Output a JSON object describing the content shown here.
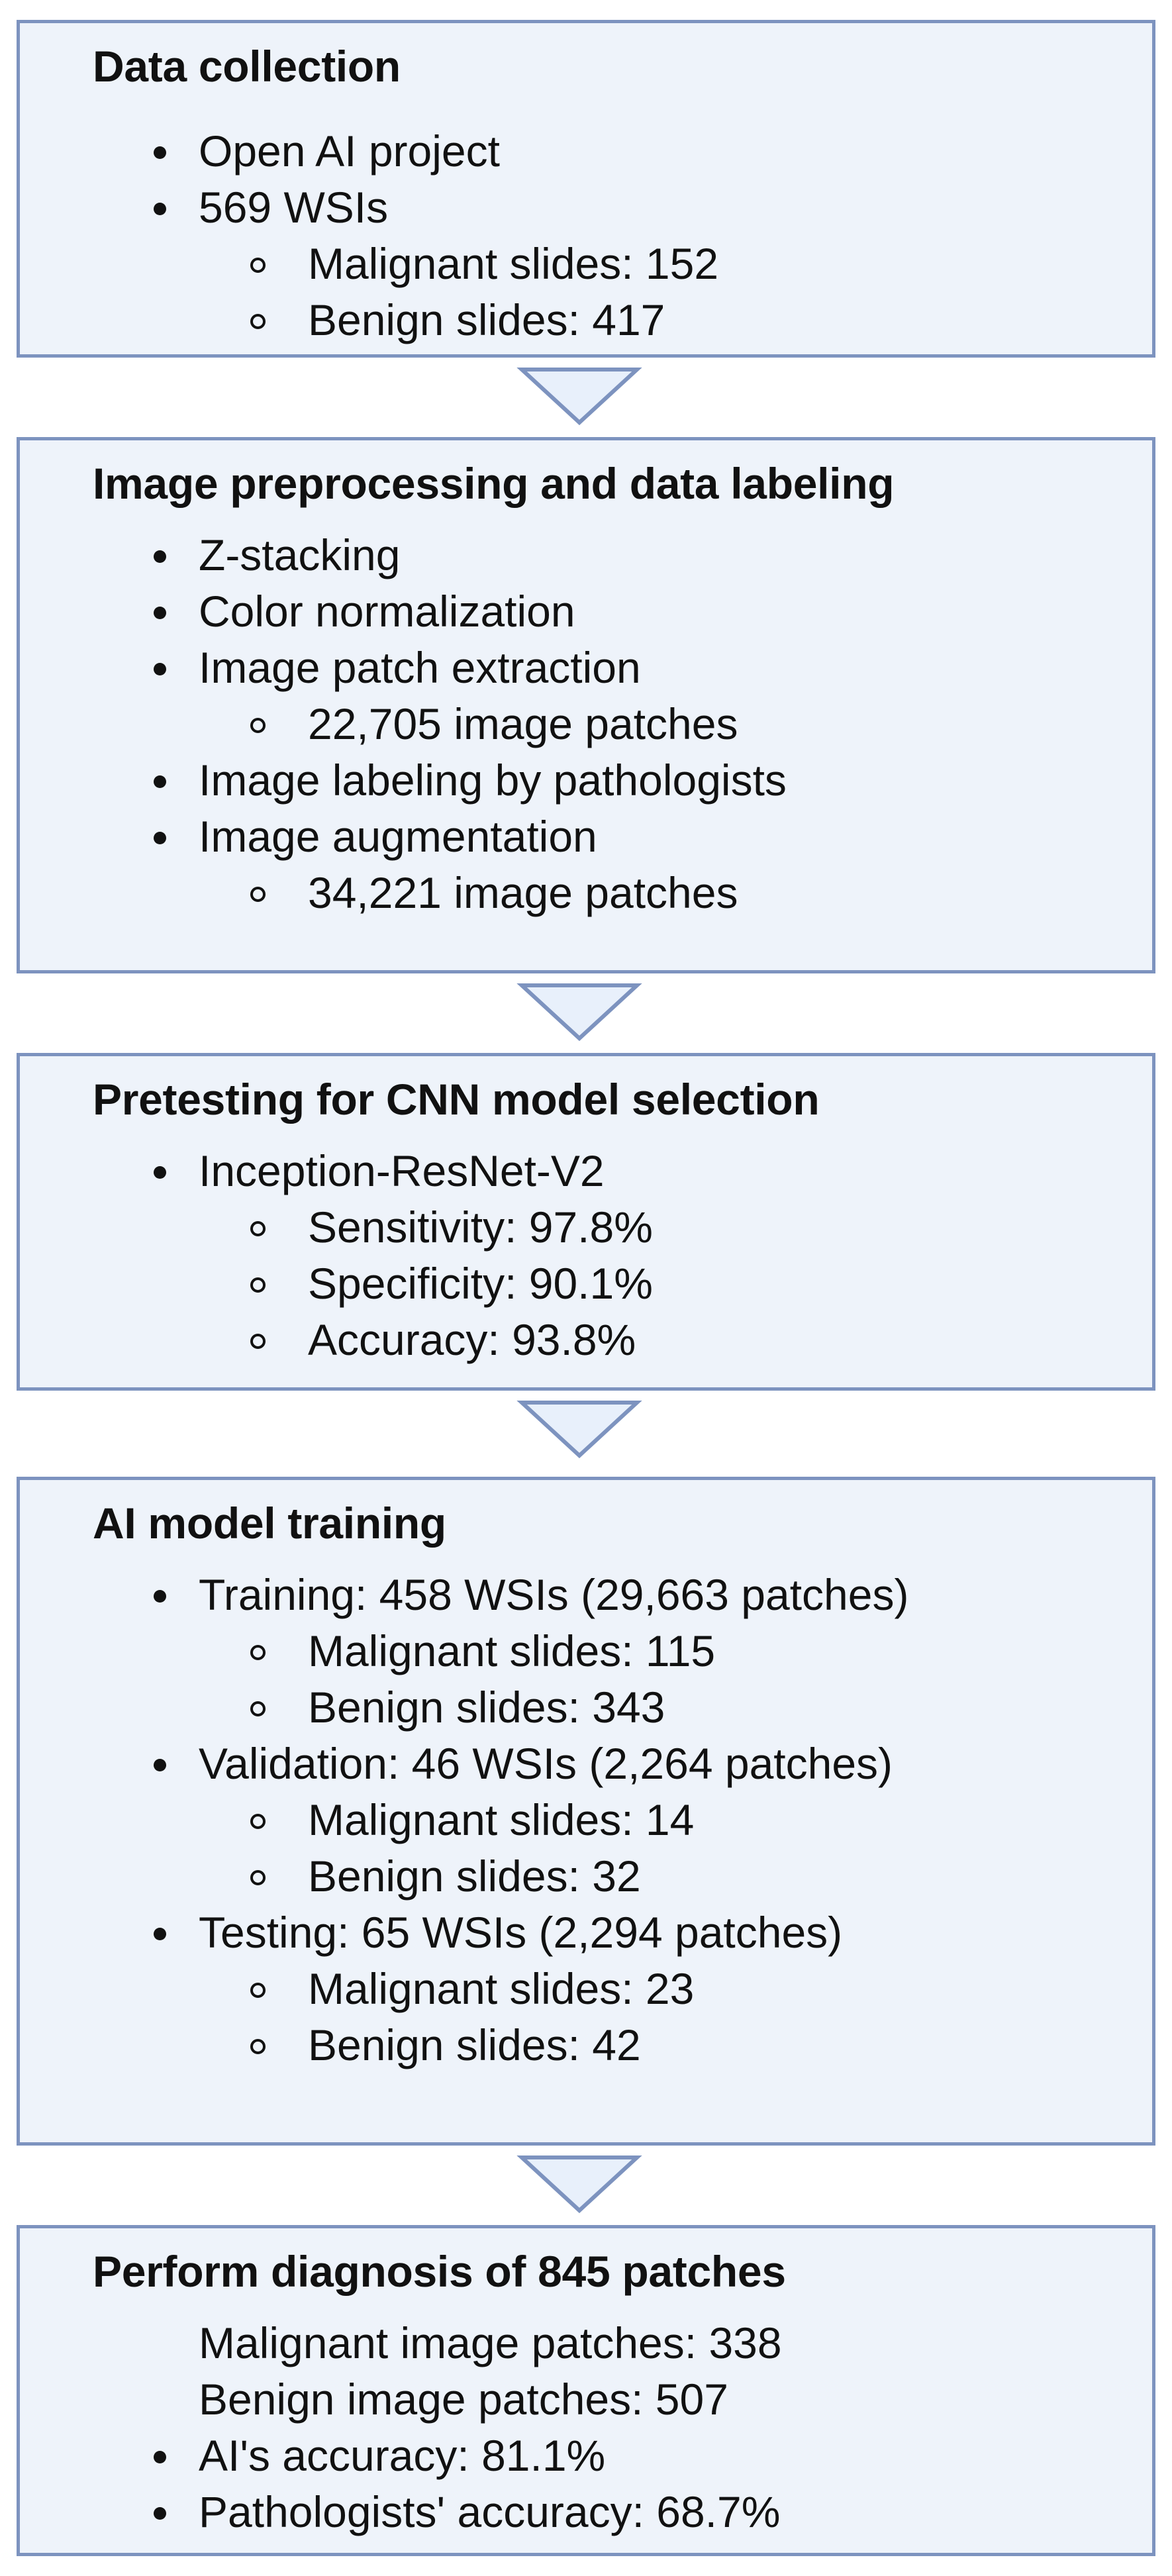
{
  "steps": [
    {
      "title": "Data collection",
      "items": [
        {
          "text": "Open AI project",
          "level": 1
        },
        {
          "text": "569  WSIs",
          "level": 1
        },
        {
          "text": "Malignant slides: 152",
          "level": 2
        },
        {
          "text": "Benign slides: 417",
          "level": 2
        }
      ]
    },
    {
      "title": "Image preprocessing and data labeling",
      "items": [
        {
          "text": "Z-stacking",
          "level": 1
        },
        {
          "text": "Color normalization",
          "level": 1
        },
        {
          "text": "Image patch extraction",
          "level": 1
        },
        {
          "text": "22,705 image patches",
          "level": 2
        },
        {
          "text": "Image labeling by pathologists",
          "level": 1
        },
        {
          "text": "Image augmentation",
          "level": 1
        },
        {
          "text": "34,221 image patches",
          "level": 2
        }
      ]
    },
    {
      "title": "Pretesting for CNN model selection",
      "items": [
        {
          "text": "Inception-ResNet-V2",
          "level": 1
        },
        {
          "text": "Sensitivity: 97.8%",
          "level": 2
        },
        {
          "text": "Specificity: 90.1%",
          "level": 2
        },
        {
          "text": "Accuracy: 93.8%",
          "level": 2
        }
      ]
    },
    {
      "title": "AI model training",
      "items": [
        {
          "text": "Training: 458 WSIs (29,663 patches)",
          "level": 1
        },
        {
          "text": "Malignant slides: 115",
          "level": 2
        },
        {
          "text": "Benign slides: 343",
          "level": 2
        },
        {
          "text": "Validation: 46 WSIs (2,264 patches)",
          "level": 1
        },
        {
          "text": "Malignant slides: 14",
          "level": 2
        },
        {
          "text": "Benign slides: 32",
          "level": 2
        },
        {
          "text": "Testing: 65 WSIs (2,294 patches)",
          "level": 1
        },
        {
          "text": "Malignant slides: 23",
          "level": 2
        },
        {
          "text": "Benign slides: 42",
          "level": 2
        }
      ]
    },
    {
      "title": "Perform diagnosis of 845 patches",
      "items": [
        {
          "text": "Malignant image patches: 338",
          "level": 0
        },
        {
          "text": "Benign image patches: 507",
          "level": 0
        },
        {
          "text": "AI's accuracy: 81.1%",
          "level": 1
        },
        {
          "text": "Pathologists' accuracy: 68.7%",
          "level": 1
        }
      ]
    }
  ],
  "colors": {
    "box_fill": "#eef3fa",
    "box_border": "#7d93bf",
    "arrow_fill": "#e8f0fb",
    "arrow_stroke": "#7d93bf"
  }
}
